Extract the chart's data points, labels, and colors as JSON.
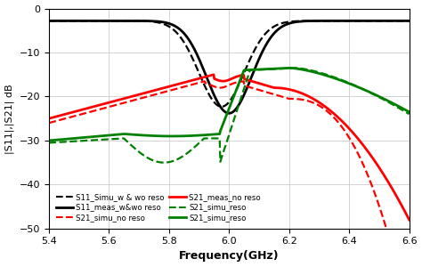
{
  "xlim": [
    5.4,
    6.6
  ],
  "ylim": [
    -50,
    0
  ],
  "yticks": [
    0,
    -10,
    -20,
    -30,
    -40,
    -50
  ],
  "xticks": [
    5.4,
    5.6,
    5.8,
    6.0,
    6.2,
    6.4,
    6.6
  ],
  "xlabel": "Frequency(GHz)",
  "ylabel": "|S11|,|S21| dB",
  "background_color": "#ffffff",
  "grid_color": "#cccccc",
  "legend_items": [
    {
      "label": "S11_Simu_w & wo reso",
      "color": "black",
      "ls": "--"
    },
    {
      "label": "S11_meas_w&wo reso",
      "color": "black",
      "ls": "-"
    },
    {
      "label": "S21_simu_no reso",
      "color": "red",
      "ls": "--"
    },
    {
      "label": "S21_meas_no reso",
      "color": "red",
      "ls": "-"
    },
    {
      "label": "S21_simu_reso",
      "color": "green",
      "ls": "--"
    },
    {
      "label": "S21_simu_reso",
      "color": "green",
      "ls": "-"
    }
  ]
}
